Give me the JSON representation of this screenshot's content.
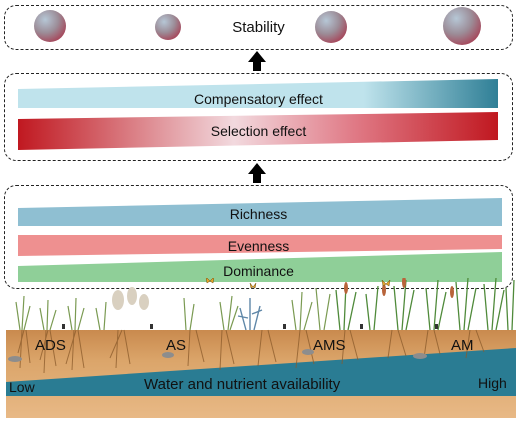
{
  "stability": {
    "label": "Stability"
  },
  "effects": {
    "compensatory": "Compensatory effect",
    "selection": "Selection effect"
  },
  "diversity": {
    "richness": "Richness",
    "evenness": "Evenness",
    "dominance": "Dominance"
  },
  "landscape": {
    "communities": [
      "ADS",
      "AS",
      "AMS",
      "AM"
    ],
    "gradient_label": "Water and nutrient availability",
    "low_label": "Low",
    "high_label": "High"
  },
  "colors": {
    "richness": "#8fbfd2",
    "evenness": "#ee9090",
    "dominance": "#8fcf98",
    "compensatory_light": "#bfe3ec",
    "compensatory_dark": "#2f7f96",
    "selection_dark": "#c01820",
    "soil": "#d9a064",
    "water": "#2a7c93"
  }
}
